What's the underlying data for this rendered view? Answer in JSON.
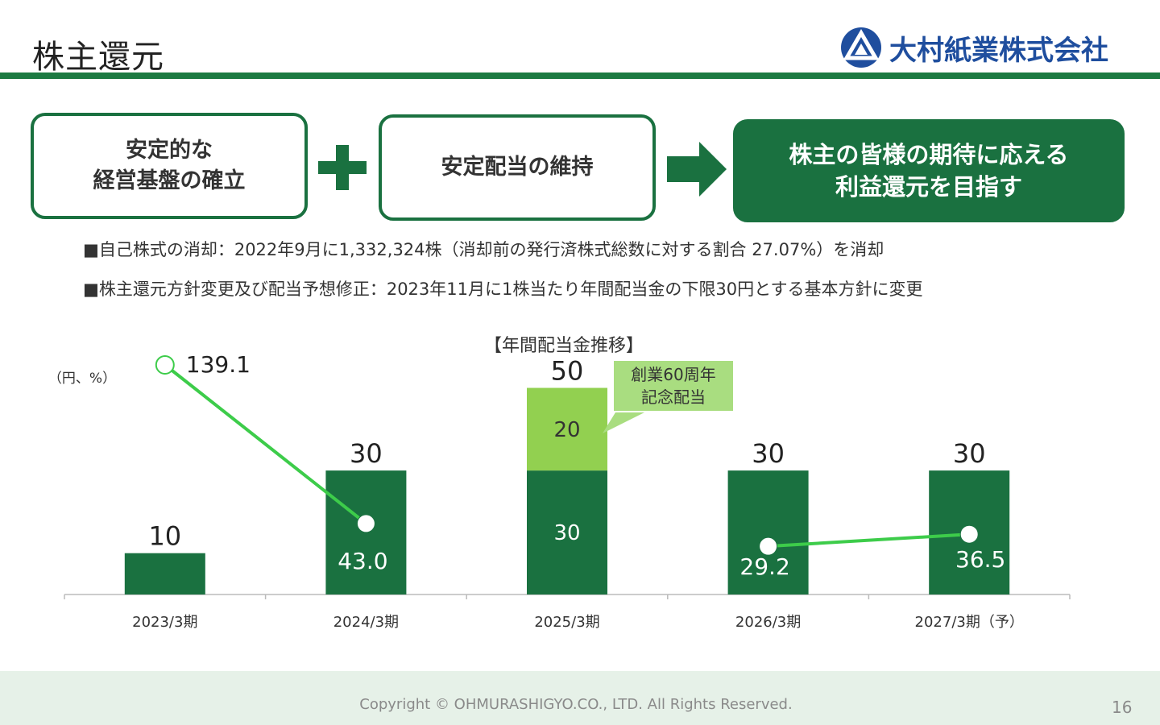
{
  "header": {
    "title": "株主還元",
    "company": "大村紙業株式会社"
  },
  "colors": {
    "accent": "#1a7140",
    "commemorative": "#92d050",
    "line": "#3dcc4a",
    "logo": "#1f4e9e"
  },
  "flow": {
    "box1": [
      "安定的な",
      "経営基盤の確立"
    ],
    "box2": "安定配当の維持",
    "box3": [
      "株主の皆様の期待に応える",
      "利益還元を目指す"
    ]
  },
  "bullets": [
    "■自己株式の消却：2022年9月に1,332,324株（消却前の発行済株式総数に対する割合 27.07%）を消却",
    "■株主還元方針変更及び配当予想修正：2023年11月に1株当たり年間配当金の下限30円とする基本方針に変更"
  ],
  "chart_data": {
    "type": "bar",
    "title": "【年間配当金推移】",
    "unit_label": "（円、%）",
    "categories": [
      "2023/3期",
      "2024/3期",
      "2025/3期",
      "2026/3期",
      "2027/3期（予）"
    ],
    "series": [
      {
        "values": [
          10,
          30,
          30,
          30,
          30
        ],
        "color": "#1a7140"
      },
      {
        "values": [
          0,
          0,
          20,
          0,
          0
        ],
        "color": "#92d050"
      }
    ],
    "totals": [
      10,
      30,
      50,
      30,
      30
    ],
    "line_values": [
      139.1,
      43.0,
      null,
      29.2,
      36.5
    ],
    "line_labels": [
      "139.1",
      "43.0",
      "",
      "29.2",
      "36.5"
    ],
    "callout": [
      "創業60周年",
      "記念配当"
    ]
  },
  "footer": {
    "copyright": "Copyright © OHMURASHIGYO.CO., LTD. All Rights Reserved.",
    "page": "16"
  }
}
